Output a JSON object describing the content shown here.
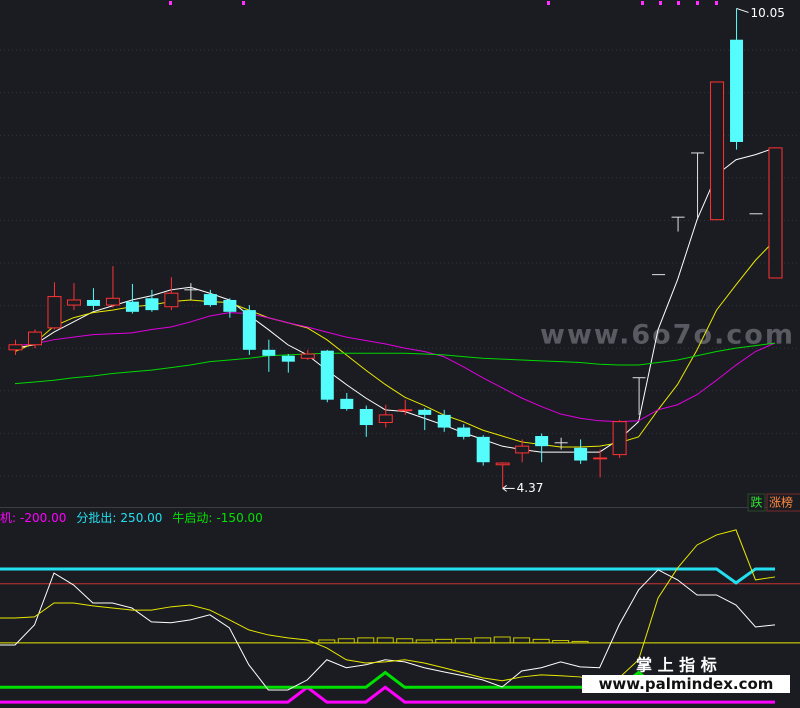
{
  "chart_data": [
    {
      "type": "candlestick",
      "ylim": [
        4.15,
        10.15
      ],
      "up_color": "#ff3232",
      "down_color": "#54fcfc",
      "flat_color": "#e0e0e0",
      "open": [
        6.01,
        6.07,
        6.27,
        6.54,
        6.6,
        6.54,
        6.58,
        6.62,
        6.52,
        6.72,
        6.67,
        6.6,
        6.48,
        6.01,
        5.94,
        5.91,
        6.0,
        5.43,
        5.31,
        5.15,
        5.29,
        5.3,
        5.24,
        5.09,
        4.98,
        4.65,
        4.79,
        4.99,
        4.91,
        4.85,
        4.72,
        4.77,
        5.68,
        6.9,
        7.58,
        8.34,
        7.55,
        9.68,
        7.62,
        6.86
      ],
      "high": [
        6.13,
        6.25,
        6.81,
        6.8,
        6.74,
        7.0,
        6.79,
        6.72,
        6.87,
        6.8,
        6.72,
        6.62,
        6.54,
        6.13,
        5.96,
        6.01,
        6.01,
        5.5,
        5.35,
        5.36,
        5.42,
        5.32,
        5.3,
        5.13,
        5.0,
        4.68,
        4.95,
        5.02,
        4.97,
        4.95,
        4.83,
        5.18,
        5.68,
        6.9,
        7.58,
        8.34,
        9.18,
        10.05,
        7.62,
        8.4
      ],
      "low": [
        5.95,
        6.03,
        6.25,
        6.48,
        6.48,
        6.51,
        6.44,
        6.46,
        6.48,
        6.6,
        6.52,
        6.39,
        5.95,
        5.75,
        5.74,
        5.89,
        5.39,
        5.29,
        4.98,
        5.09,
        5.24,
        5.06,
        5.04,
        4.95,
        4.64,
        4.37,
        4.68,
        4.68,
        4.83,
        4.66,
        4.5,
        4.73,
        5.24,
        6.9,
        7.41,
        7.55,
        7.55,
        8.38,
        7.62,
        6.86
      ],
      "close": [
        6.07,
        6.22,
        6.64,
        6.6,
        6.53,
        6.62,
        6.46,
        6.48,
        6.68,
        6.72,
        6.54,
        6.46,
        6.01,
        5.94,
        5.87,
        5.96,
        5.42,
        5.31,
        5.12,
        5.24,
        5.3,
        5.24,
        5.09,
        4.98,
        4.68,
        4.67,
        4.87,
        4.87,
        4.91,
        4.7,
        4.73,
        5.16,
        5.68,
        6.9,
        7.58,
        8.34,
        9.18,
        8.47,
        7.62,
        8.4
      ],
      "max_label": "10.05",
      "min_label": "4.37",
      "series": [
        {
          "color": "#ffffff",
          "values": [
            6.03,
            6.07,
            6.22,
            6.34,
            6.46,
            6.53,
            6.6,
            6.65,
            6.72,
            6.75,
            6.68,
            6.6,
            6.42,
            6.25,
            6.07,
            5.95,
            5.77,
            5.6,
            5.44,
            5.3,
            5.28,
            5.2,
            5.12,
            5.03,
            4.95,
            4.87,
            4.83,
            4.8,
            4.8,
            4.8,
            4.8,
            4.95,
            5.16,
            6.25,
            6.84,
            7.55,
            8.08,
            8.26,
            8.32,
            8.4
          ]
        },
        {
          "color": "#e8e800",
          "values": [
            5.99,
            6.09,
            6.29,
            6.39,
            6.45,
            6.48,
            6.52,
            6.54,
            6.58,
            6.6,
            6.58,
            6.57,
            6.48,
            6.39,
            6.33,
            6.27,
            6.13,
            5.95,
            5.77,
            5.6,
            5.45,
            5.35,
            5.24,
            5.16,
            5.06,
            4.99,
            4.92,
            4.89,
            4.86,
            4.86,
            4.87,
            4.91,
            4.98,
            5.3,
            5.6,
            6.01,
            6.48,
            6.78,
            7.07,
            7.31
          ]
        },
        {
          "color": "#e000e0",
          "values": [
            6.06,
            6.08,
            6.13,
            6.16,
            6.19,
            6.2,
            6.21,
            6.25,
            6.28,
            6.34,
            6.41,
            6.45,
            6.44,
            6.39,
            6.33,
            6.28,
            6.22,
            6.16,
            6.12,
            6.08,
            6.03,
            5.99,
            5.93,
            5.81,
            5.68,
            5.56,
            5.44,
            5.34,
            5.25,
            5.2,
            5.17,
            5.16,
            5.17,
            5.3,
            5.36,
            5.48,
            5.65,
            5.83,
            5.99,
            6.09
          ]
        },
        {
          "color": "#00d800",
          "values": [
            5.61,
            5.63,
            5.65,
            5.68,
            5.7,
            5.73,
            5.75,
            5.77,
            5.8,
            5.83,
            5.87,
            5.89,
            5.91,
            5.94,
            5.95,
            5.96,
            5.97,
            5.97,
            5.97,
            5.97,
            5.97,
            5.96,
            5.95,
            5.93,
            5.91,
            5.9,
            5.89,
            5.88,
            5.87,
            5.86,
            5.84,
            5.83,
            5.83,
            5.86,
            5.89,
            5.94,
            5.99,
            6.03,
            6.06,
            6.09
          ]
        }
      ]
    },
    {
      "type": "indicator",
      "ylim": [
        -220,
        456
      ],
      "hlines": [
        {
          "value": 200,
          "color": "#c83232"
        },
        {
          "value": 0,
          "color": "#e8e800"
        }
      ],
      "series": [
        {
          "name": "时机:",
          "legend_value": "-200.00",
          "color": "#ff00ff",
          "width": 3,
          "values": [
            -200,
            -200,
            -200,
            -200,
            -200,
            -200,
            -200,
            -200,
            -200,
            -200,
            -200,
            -200,
            -200,
            -200,
            -200,
            -150,
            -200,
            -200,
            -200,
            -150,
            -200,
            -200,
            -200,
            -200,
            -200,
            -200,
            -200,
            -200,
            -200,
            -200,
            -200,
            -200,
            -200,
            -200,
            -200,
            -200,
            -200,
            -200,
            -200,
            -200
          ]
        },
        {
          "name": "分批出:",
          "legend_value": "250.00",
          "color": "#22e0f0",
          "width": 3,
          "values": [
            250,
            250,
            250,
            250,
            250,
            250,
            250,
            250,
            250,
            250,
            250,
            250,
            250,
            250,
            250,
            250,
            250,
            250,
            250,
            250,
            250,
            250,
            250,
            250,
            250,
            250,
            250,
            250,
            250,
            250,
            250,
            250,
            250,
            250,
            250,
            250,
            250,
            203,
            250,
            250
          ]
        },
        {
          "name": "牛启动:",
          "legend_value": "-150.00",
          "color": "#00e000",
          "width": 3,
          "values": [
            -150,
            -150,
            -150,
            -150,
            -150,
            -150,
            -150,
            -150,
            -150,
            -150,
            -150,
            -150,
            -150,
            -150,
            -150,
            -150,
            -150,
            -150,
            -150,
            -100,
            -150,
            -150,
            -150,
            -150,
            -150,
            -150,
            -150,
            -150,
            -150,
            -150,
            -150,
            -150,
            -100,
            -150,
            -150,
            -150,
            -150,
            -150,
            -150,
            -150
          ]
        },
        {
          "color": "#ffffff",
          "width": 1,
          "values": [
            -7,
            61,
            236,
            196,
            135,
            135,
            118,
            71,
            68,
            78,
            95,
            51,
            -74,
            -159,
            -159,
            -125,
            -57,
            -84,
            -74,
            -57,
            -64,
            -84,
            -98,
            -111,
            -125,
            -149,
            -95,
            -84,
            -64,
            -81,
            -84,
            61,
            179,
            247,
            213,
            162,
            162,
            128,
            54,
            61
          ]
        },
        {
          "color": "#e8e800",
          "width": 1,
          "values": [
            84,
            88,
            135,
            135,
            125,
            118,
            111,
            111,
            122,
            128,
            111,
            78,
            44,
            27,
            17,
            10,
            -17,
            -57,
            -68,
            -64,
            -57,
            -68,
            -84,
            -101,
            -118,
            -128,
            -115,
            -108,
            -111,
            -115,
            -132,
            -118,
            -57,
            152,
            253,
            331,
            365,
            382,
            213,
            223
          ]
        },
        {
          "type": "bar",
          "color": "#c8c800",
          "values": [
            null,
            null,
            null,
            null,
            null,
            null,
            null,
            null,
            null,
            null,
            null,
            null,
            null,
            null,
            null,
            null,
            10,
            14,
            17,
            17,
            14,
            10,
            12,
            14,
            17,
            20,
            17,
            12,
            8,
            5,
            null,
            null,
            null,
            null,
            null,
            null,
            null,
            null,
            null,
            null
          ]
        }
      ]
    }
  ],
  "badges": {
    "fall": "跌",
    "board": "涨榜"
  },
  "watermarks": {
    "site": "www.6o7o.com",
    "brand": "掌 上 指 标",
    "url": "www.palmindex.com"
  }
}
